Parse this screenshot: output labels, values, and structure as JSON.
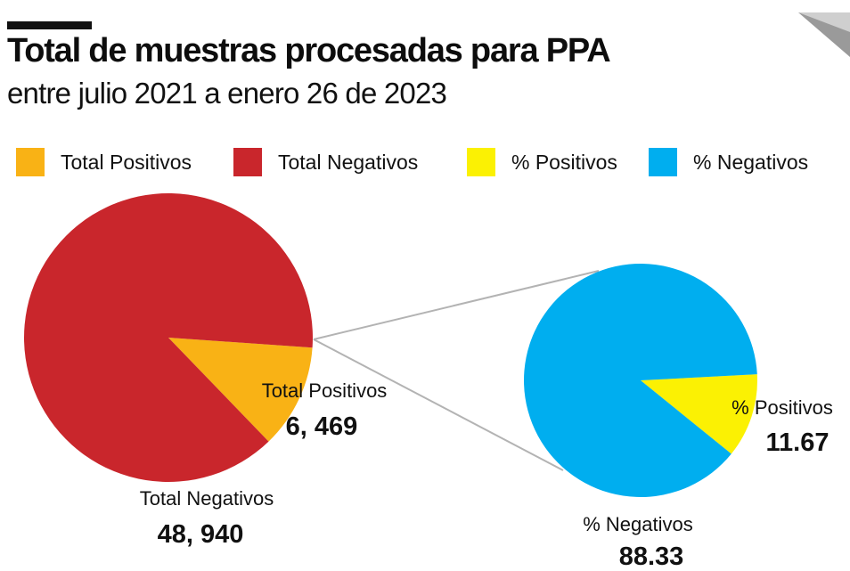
{
  "header": {
    "title": "Total de muestras procesadas para PPA",
    "subtitle": "entre julio 2021 a enero 26 de 2023"
  },
  "legend": [
    {
      "label": "Total Positivos",
      "color": "#f9b215"
    },
    {
      "label": "Total Negativos",
      "color": "#c9262c"
    },
    {
      "label": "% Positivos",
      "color": "#fbf103"
    },
    {
      "label": "% Negativos",
      "color": "#00aeef"
    }
  ],
  "chart_data": [
    {
      "type": "pie",
      "slices": [
        {
          "label": "Total Positivos",
          "value": 6469,
          "value_label": "6, 469",
          "color": "#f9b215"
        },
        {
          "label": "Total Negativos",
          "value": 48940,
          "value_label": "48, 940",
          "color": "#c9262c"
        }
      ]
    },
    {
      "type": "pie",
      "slices": [
        {
          "label": "% Positivos",
          "value": 11.67,
          "value_label": "11.67",
          "color": "#fbf103"
        },
        {
          "label": "% Negativos",
          "value": 88.33,
          "value_label": "88.33",
          "color": "#00aeef"
        }
      ]
    }
  ]
}
